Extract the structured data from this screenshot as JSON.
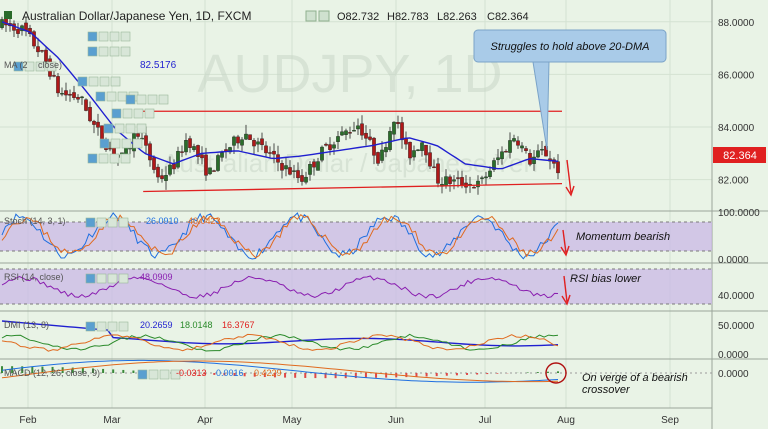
{
  "header": {
    "symbol_title": "Australian Dollar/Japanese Yen, 1D, FXCM",
    "ohlc": [
      "O82.732",
      "H82.783",
      "L82.263",
      "C82.364"
    ]
  },
  "watermark": {
    "main": "AUDJPY, 1D",
    "sub": "Australian Dollar / Japanese Yen"
  },
  "indicators_main": [
    {
      "label": "MA (2",
      "extra": "close)",
      "value": "82.5176",
      "color": "#1f1fd0"
    }
  ],
  "price_marker": {
    "value": "82.364",
    "color": "#e02020"
  },
  "callout": {
    "text": "Struggles to hold above 20-DMA"
  },
  "panes": {
    "stoch": {
      "label": "Stoch (14, 3, 1)",
      "values": [
        "26.0910",
        "40.0423"
      ],
      "colors": [
        "#1f6fe0",
        "#e06a1f"
      ],
      "annotation": "Momentum bearish"
    },
    "rsi": {
      "label": "RSI (14, close)",
      "value": "48.0909",
      "color": "#8a1fb0",
      "annotation": "RSI bias lower"
    },
    "dmi": {
      "label": "DMI (13, 8)",
      "values": [
        "20.2659",
        "18.0148",
        "16.3767"
      ],
      "colors": [
        "#1f1fd0",
        "#2a8a2a",
        "#e02020"
      ]
    },
    "macd": {
      "label": "MACD (12, 26, close, 9)",
      "values": [
        "-0.0313",
        "0.0016",
        "0.4229"
      ],
      "colors": [
        "#e02020",
        "#1f6fe0",
        "#e06a1f"
      ],
      "annotation": "On verge of a bearish crossover"
    }
  },
  "chart_data": {
    "type": "candlestick",
    "symbol": "AUDJPY",
    "timeframe": "1D",
    "x_axis_labels": [
      "Feb",
      "Mar",
      "Apr",
      "May",
      "Jun",
      "Jul",
      "Aug",
      "Sep"
    ],
    "price_axis_labels": [
      "88.0000",
      "86.0000",
      "84.0000",
      "82.000"
    ],
    "price_range": [
      81.0,
      88.6
    ],
    "last_price": 82.364,
    "resistance_level": 84.6,
    "support_trendline": [
      [
        0.17,
        81.55
      ],
      [
        0.78,
        81.85
      ]
    ],
    "close_anchors": [
      [
        0.0,
        87.9
      ],
      [
        0.03,
        87.7
      ],
      [
        0.06,
        86.6
      ],
      [
        0.08,
        85.3
      ],
      [
        0.11,
        85.1
      ],
      [
        0.13,
        84.0
      ],
      [
        0.15,
        83.2
      ],
      [
        0.17,
        82.8
      ],
      [
        0.19,
        83.9
      ],
      [
        0.22,
        82.0
      ],
      [
        0.24,
        82.5
      ],
      [
        0.26,
        83.6
      ],
      [
        0.29,
        82.2
      ],
      [
        0.31,
        83.0
      ],
      [
        0.34,
        83.8
      ],
      [
        0.36,
        83.3
      ],
      [
        0.39,
        82.6
      ],
      [
        0.42,
        82.0
      ],
      [
        0.45,
        83.1
      ],
      [
        0.47,
        83.6
      ],
      [
        0.5,
        84.1
      ],
      [
        0.53,
        82.7
      ],
      [
        0.55,
        84.4
      ],
      [
        0.57,
        82.9
      ],
      [
        0.59,
        83.5
      ],
      [
        0.61,
        82.0
      ],
      [
        0.64,
        81.9
      ],
      [
        0.67,
        81.8
      ],
      [
        0.69,
        82.6
      ],
      [
        0.72,
        83.7
      ],
      [
        0.74,
        82.7
      ],
      [
        0.76,
        83.1
      ],
      [
        0.78,
        82.4
      ]
    ],
    "ma20_anchors": [
      [
        0.0,
        88.0
      ],
      [
        0.04,
        87.6
      ],
      [
        0.08,
        86.6
      ],
      [
        0.12,
        85.3
      ],
      [
        0.16,
        83.9
      ],
      [
        0.2,
        83.0
      ],
      [
        0.24,
        82.6
      ],
      [
        0.28,
        83.0
      ],
      [
        0.33,
        83.1
      ],
      [
        0.38,
        82.8
      ],
      [
        0.42,
        82.9
      ],
      [
        0.47,
        83.1
      ],
      [
        0.52,
        83.3
      ],
      [
        0.57,
        83.6
      ],
      [
        0.61,
        83.3
      ],
      [
        0.65,
        82.6
      ],
      [
        0.7,
        82.4
      ],
      [
        0.74,
        82.8
      ],
      [
        0.78,
        82.7
      ]
    ],
    "stoch": {
      "range": [
        0,
        100
      ],
      "levels": [
        80,
        20
      ],
      "axis_labels": [
        "100.0000",
        "0.0000"
      ]
    },
    "rsi": {
      "range": [
        20,
        80
      ],
      "levels": [
        70,
        30
      ],
      "axis_labels": [
        "40.0000"
      ]
    },
    "dmi": {
      "range": [
        0,
        60
      ],
      "axis_labels": [
        "50.0000",
        "0.0000"
      ]
    },
    "macd": {
      "axis_labels": [
        "0.0000"
      ]
    }
  }
}
